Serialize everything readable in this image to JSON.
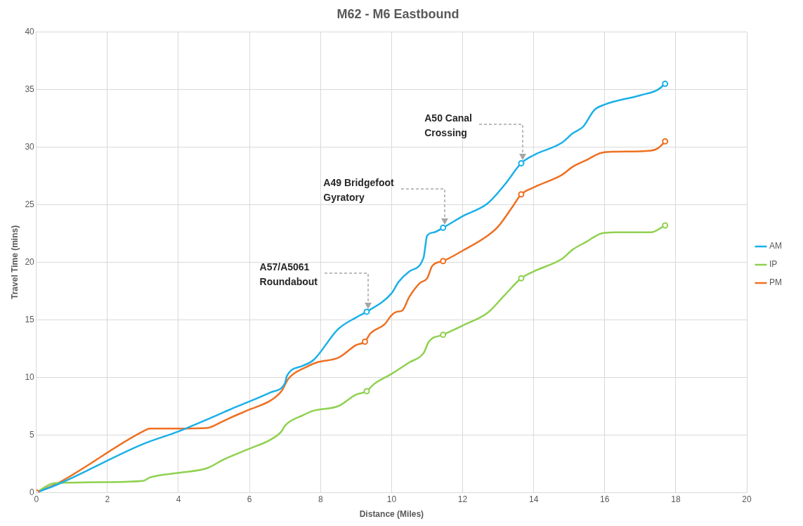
{
  "chart_data": {
    "type": "line",
    "title": "M62 - M6 Eastbound",
    "xlabel": "Distance (Miles)",
    "ylabel": "Travel Time (mins)",
    "xlim": [
      0,
      20
    ],
    "xticks": [
      0,
      2,
      4,
      6,
      8,
      10,
      12,
      14,
      16,
      18,
      20
    ],
    "ylim": [
      0,
      40
    ],
    "yticks": [
      0,
      5,
      10,
      15,
      20,
      25,
      30,
      35,
      40
    ],
    "grid": true,
    "legend": "right",
    "marker": "none",
    "line_style": "solid",
    "annotations": [
      "A57/A5061\nRoundabout",
      "A49 Bridgefoot\nGyratory",
      "A50 Canal\nCrossing"
    ],
    "series": [
      {
        "name": "AM",
        "color": "#1ab0e8",
        "x": [
          0,
          0.6,
          3,
          4,
          5,
          5.3,
          5.6,
          6,
          6.6,
          7,
          7.05,
          7.5,
          7.8,
          8.5,
          9.0,
          9.3,
          10,
          10.2,
          10.5,
          10.9,
          11.0,
          11.2,
          11.45,
          12,
          12.7,
          13.2,
          13.65,
          14,
          14.8,
          15.1,
          15.4,
          15.7,
          16,
          17,
          17.5,
          17.7
        ],
        "values": [
          0,
          0.7,
          4.2,
          5.3,
          6.6,
          7.0,
          7.4,
          7.9,
          8.7,
          9.5,
          10.1,
          11,
          11.5,
          14.2,
          15.2,
          15.7,
          17.3,
          18.3,
          19.2,
          20.4,
          22.3,
          22.6,
          23.0,
          24.0,
          25.1,
          26.8,
          28.6,
          29.3,
          30.4,
          31.2,
          31.8,
          33.2,
          33.7,
          34.5,
          35.0,
          35.5
        ]
      },
      {
        "name": "IP",
        "color": "#8fd14f",
        "x": [
          0,
          0.5,
          1,
          2,
          3,
          3.2,
          4,
          4.8,
          5.3,
          6,
          6.6,
          6.9,
          7.0,
          7.5,
          7.8,
          8.5,
          9.0,
          9.3,
          9.5,
          10,
          10.5,
          10.9,
          11.05,
          11.45,
          12,
          12.7,
          13.2,
          13.65,
          14,
          14.8,
          15.1,
          15.5,
          15.9,
          16.3,
          17.3,
          17.7
        ],
        "values": [
          0,
          0.8,
          0.85,
          0.9,
          1.0,
          1.3,
          1.7,
          2.1,
          2.9,
          3.8,
          4.6,
          5.3,
          5.8,
          6.7,
          7.1,
          7.5,
          8.5,
          8.8,
          9.4,
          10.3,
          11.3,
          12.1,
          13.1,
          13.7,
          14.5,
          15.6,
          17.2,
          18.6,
          19.2,
          20.3,
          21.1,
          21.8,
          22.5,
          22.6,
          22.6,
          23.2
        ]
      },
      {
        "name": "PM",
        "color": "#ee7022",
        "x": [
          0,
          0.6,
          3,
          3.2,
          4,
          4.8,
          5.2,
          5.4,
          6,
          6.6,
          6.9,
          7.1,
          7.6,
          7.9,
          8.5,
          9.0,
          9.25,
          9.4,
          9.8,
          10.0,
          10.15,
          10.3,
          10.5,
          10.8,
          11.0,
          11.15,
          11.45,
          12,
          12.7,
          13.0,
          13.4,
          13.65,
          14,
          14.8,
          15.1,
          15.5,
          15.9,
          16.3,
          17.3,
          17.5,
          17.7
        ],
        "values": [
          0,
          0.8,
          5.3,
          5.55,
          5.55,
          5.6,
          6.1,
          6.4,
          7.2,
          8.0,
          8.8,
          9.9,
          10.9,
          11.3,
          11.7,
          12.8,
          13.1,
          13.8,
          14.6,
          15.4,
          15.7,
          15.8,
          17.0,
          18.2,
          18.6,
          19.7,
          20.1,
          21.0,
          22.3,
          23.1,
          24.8,
          25.9,
          26.5,
          27.6,
          28.3,
          28.9,
          29.5,
          29.6,
          29.7,
          29.9,
          30.5
        ]
      },
      {
        "type": "scatter",
        "marker": "circle",
        "color": "#1ab0e8",
        "x": [
          9.3,
          11.45,
          13.65,
          17.7
        ],
        "values": [
          15.7,
          23.0,
          28.6,
          35.5
        ]
      },
      {
        "type": "scatter",
        "marker": "circle",
        "color": "#8fd14f",
        "x": [
          9.3,
          11.45,
          13.65,
          17.7
        ],
        "values": [
          8.8,
          13.7,
          18.6,
          23.2
        ]
      },
      {
        "type": "scatter",
        "marker": "circle",
        "color": "#ee7022",
        "x": [
          0,
          9.25,
          11.45,
          13.65,
          17.7
        ],
        "values": [
          0,
          13.1,
          20.1,
          25.9,
          30.5
        ]
      }
    ]
  }
}
